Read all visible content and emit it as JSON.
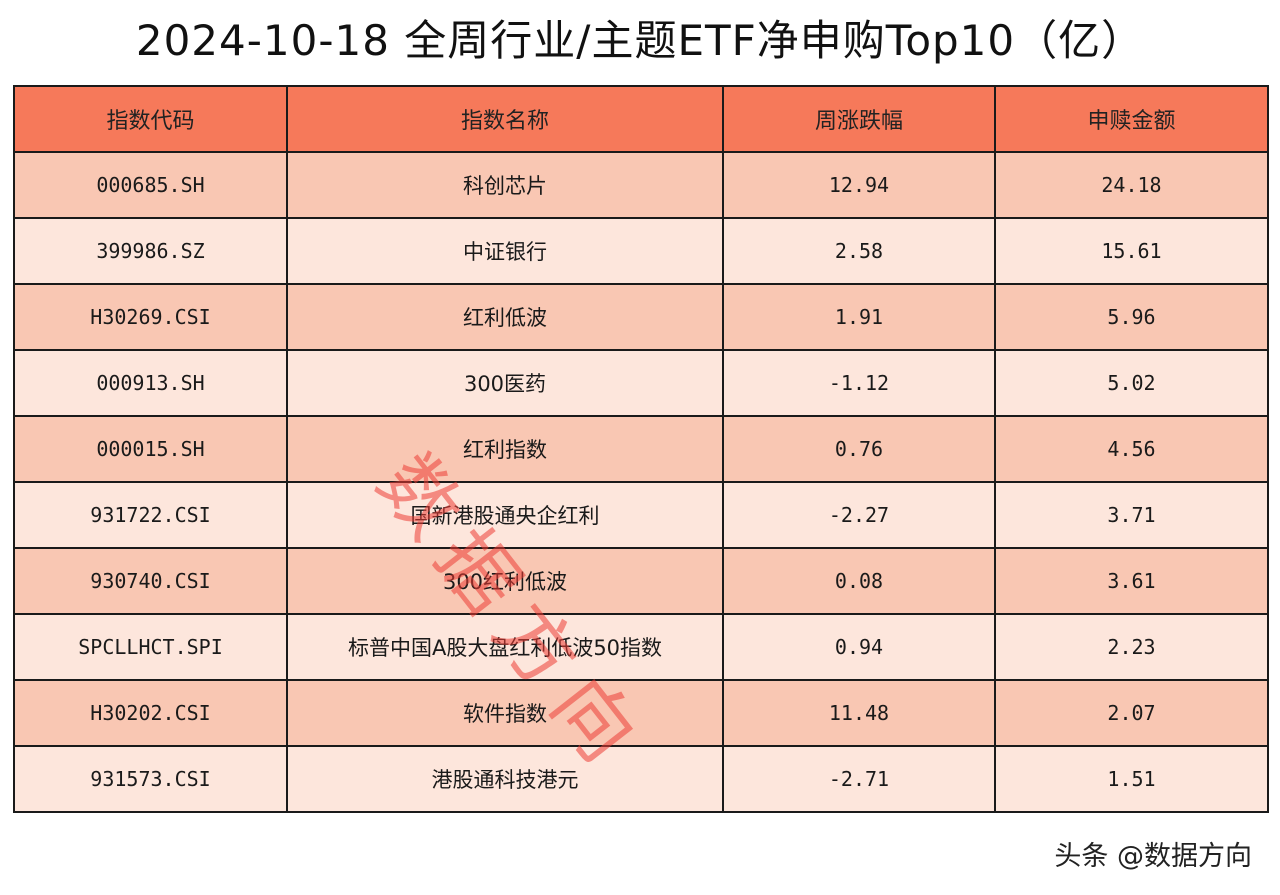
{
  "title": "2024-10-18 全周行业/主题ETF净申购Top10（亿）",
  "table": {
    "headers": [
      "指数代码",
      "指数名称",
      "周涨跌幅",
      "申赎金额"
    ],
    "rows": [
      {
        "code": "000685.SH",
        "name": "科创芯片",
        "change": "12.94",
        "amount": "24.18"
      },
      {
        "code": "399986.SZ",
        "name": "中证银行",
        "change": "2.58",
        "amount": "15.61"
      },
      {
        "code": "H30269.CSI",
        "name": "红利低波",
        "change": "1.91",
        "amount": "5.96"
      },
      {
        "code": "000913.SH",
        "name": "300医药",
        "change": "-1.12",
        "amount": "5.02"
      },
      {
        "code": "000015.SH",
        "name": "红利指数",
        "change": "0.76",
        "amount": "4.56"
      },
      {
        "code": "931722.CSI",
        "name": "国新港股通央企红利",
        "change": "-2.27",
        "amount": "3.71"
      },
      {
        "code": "930740.CSI",
        "name": "300红利低波",
        "change": "0.08",
        "amount": "3.61"
      },
      {
        "code": "SPCLLHCT.SPI",
        "name": "标普中国A股大盘红利低波50指数",
        "change": "0.94",
        "amount": "2.23"
      },
      {
        "code": "H30202.CSI",
        "name": "软件指数",
        "change": "11.48",
        "amount": "2.07"
      },
      {
        "code": "931573.CSI",
        "name": "港股通科技港元",
        "change": "-2.71",
        "amount": "1.51"
      }
    ]
  },
  "watermark": "数据方向",
  "footer": "头条 @数据方向",
  "colors": {
    "header_bg": "#f6795a",
    "row_odd_bg": "#f9c7b3",
    "row_even_bg": "#fde6dc",
    "watermark": "#ec3c34"
  }
}
